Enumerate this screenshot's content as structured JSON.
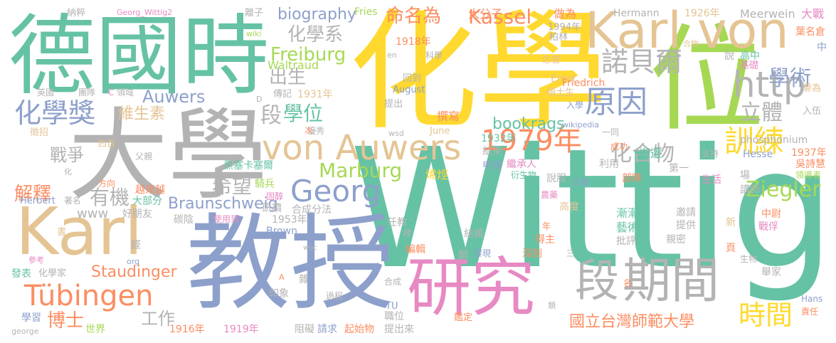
{
  "colors": {
    "green": "#66c2a5",
    "orange": "#fc8d62",
    "blue": "#8da0cb",
    "pink": "#e78ac3",
    "lime": "#a6d854",
    "yellow": "#ffd92f",
    "tan": "#e5c494",
    "gray": "#b3b3b3"
  },
  "words": [
    {
      "text": "Wittig",
      "color": "green"
    },
    {
      "text": "化學",
      "color": "yellow"
    },
    {
      "text": "大學",
      "color": "gray"
    },
    {
      "text": "教授",
      "color": "blue"
    },
    {
      "text": "德國時",
      "color": "green"
    },
    {
      "text": "位",
      "color": "lime"
    },
    {
      "text": "Karl von",
      "color": "tan"
    },
    {
      "text": "Karl",
      "color": "tan"
    },
    {
      "text": "研究",
      "color": "pink"
    },
    {
      "text": "期間",
      "color": "gray"
    },
    {
      "text": "段",
      "color": "gray"
    },
    {
      "text": "von Auwers",
      "color": "tan"
    },
    {
      "text": "Georg",
      "color": "blue"
    },
    {
      "text": "Tübingen",
      "color": "orange"
    },
    {
      "text": "1979年",
      "color": "orange"
    },
    {
      "text": "http",
      "color": "gray"
    },
    {
      "text": "原因",
      "color": "blue"
    },
    {
      "text": "諾貝爾",
      "color": "gray"
    },
    {
      "text": "化學獎",
      "color": "blue"
    },
    {
      "text": "訓練",
      "color": "yellow"
    },
    {
      "text": "時間",
      "color": "yellow"
    },
    {
      "text": "國立台灣師範大學",
      "color": "orange"
    },
    {
      "text": "Kassel",
      "color": "orange"
    },
    {
      "text": "Marburg",
      "color": "lime"
    },
    {
      "text": "Ziegler",
      "color": "lime"
    },
    {
      "text": "Freiburg",
      "color": "lime"
    },
    {
      "text": "Auwers",
      "color": "blue"
    },
    {
      "text": "Staudinger",
      "color": "orange"
    },
    {
      "text": "Braunschweig",
      "color": "blue"
    },
    {
      "text": "bookrags",
      "color": "green"
    },
    {
      "text": "biography",
      "color": "blue"
    },
    {
      "text": "命名為",
      "color": "orange"
    },
    {
      "text": "化學系",
      "color": "gray"
    },
    {
      "text": "出生",
      "color": "gray"
    },
    {
      "text": "學位",
      "color": "green"
    },
    {
      "text": "段",
      "color": "gray"
    },
    {
      "text": "學術",
      "color": "blue"
    },
    {
      "text": "立體",
      "color": "gray"
    },
    {
      "text": "化合物",
      "color": "gray"
    },
    {
      "text": "維生素",
      "color": "tan"
    },
    {
      "text": "戰爭",
      "color": "gray"
    },
    {
      "text": "解釋",
      "color": "orange"
    },
    {
      "text": "希望",
      "color": "gray"
    },
    {
      "text": "有機",
      "color": "gray"
    },
    {
      "text": "博士",
      "color": "orange"
    },
    {
      "text": "工作",
      "color": "gray"
    },
    {
      "text": "www",
      "color": "gray"
    },
    {
      "text": "Waltraud",
      "color": "lime"
    },
    {
      "text": "Meerwein",
      "color": "gray"
    },
    {
      "text": "Hermann",
      "color": "gray"
    },
    {
      "text": "Fries",
      "color": "lime"
    },
    {
      "text": "1918年",
      "color": "orange"
    },
    {
      "text": "1926年",
      "color": "tan"
    },
    {
      "text": "1931年",
      "color": "tan"
    },
    {
      "text": "1932年",
      "color": "green"
    },
    {
      "text": "1937年",
      "color": "orange"
    },
    {
      "text": "1916年",
      "color": "orange"
    },
    {
      "text": "1919年",
      "color": "pink"
    },
    {
      "text": "1953年",
      "color": "gray"
    },
    {
      "text": "1994年",
      "color": "gray"
    },
    {
      "text": "大分子",
      "color": "orange"
    },
    {
      "text": "做為",
      "color": "orange"
    },
    {
      "text": "大戰",
      "color": "pink"
    },
    {
      "text": "葉名倉",
      "color": "orange"
    },
    {
      "text": "柏林",
      "color": "gray"
    },
    {
      "text": "念書",
      "color": "tan"
    },
    {
      "text": "合物",
      "color": "tan"
    },
    {
      "text": "高中",
      "color": "green"
    },
    {
      "text": "基礎",
      "color": "pink"
    },
    {
      "text": "說",
      "color": "gray"
    },
    {
      "text": "中",
      "color": "blue"
    },
    {
      "text": "Ernst",
      "color": "tan"
    },
    {
      "text": "Friedrich",
      "color": "orange"
    },
    {
      "text": "碩士生",
      "color": "tan"
    },
    {
      "text": "入學",
      "color": "blue"
    },
    {
      "text": "譽為",
      "color": "tan"
    },
    {
      "text": "入伍",
      "color": "gray"
    },
    {
      "text": "phosphonium",
      "color": "gray"
    },
    {
      "text": "wikipedia",
      "color": "blue"
    },
    {
      "text": "Hesse",
      "color": "blue"
    },
    {
      "text": "吳詩慧",
      "color": "orange"
    },
    {
      "text": "領導者",
      "color": "lime"
    },
    {
      "text": "撰寫",
      "color": "orange"
    },
    {
      "text": "結束",
      "color": "gray"
    },
    {
      "text": "成功",
      "color": "orange"
    },
    {
      "text": "搬遷",
      "color": "green"
    },
    {
      "text": "支持",
      "color": "gray"
    },
    {
      "text": "一同",
      "color": "gray"
    },
    {
      "text": "繼承人",
      "color": "pink"
    },
    {
      "text": "衍生物",
      "color": "green"
    },
    {
      "text": "申請",
      "color": "blue"
    },
    {
      "text": "利用",
      "color": "gray"
    },
    {
      "text": "第一",
      "color": "gray"
    },
    {
      "text": "生活",
      "color": "pink"
    },
    {
      "text": "部隊",
      "color": "orange"
    },
    {
      "text": "說服",
      "color": "gray"
    },
    {
      "text": "文獻",
      "color": "blue"
    },
    {
      "text": "場",
      "color": "gray"
    },
    {
      "text": "講師",
      "color": "gray"
    },
    {
      "text": "烯烴",
      "color": "yellow"
    },
    {
      "text": "高度",
      "color": "tan"
    },
    {
      "text": "農藥",
      "color": "pink"
    },
    {
      "text": "漸漸",
      "color": "green"
    },
    {
      "text": "邀請",
      "color": "gray"
    },
    {
      "text": "新",
      "color": "tan"
    },
    {
      "text": "藝術",
      "color": "green"
    },
    {
      "text": "提供",
      "color": "gray"
    },
    {
      "text": "中尉",
      "color": "orange"
    },
    {
      "text": "戰俘",
      "color": "pink"
    },
    {
      "text": "親密",
      "color": "gray"
    },
    {
      "text": "批評",
      "color": "gray"
    },
    {
      "text": "得主",
      "color": "orange"
    },
    {
      "text": "深刻",
      "color": "orange"
    },
    {
      "text": "頁",
      "color": "orange"
    },
    {
      "text": "生物",
      "color": "gray"
    },
    {
      "text": "舉家",
      "color": "gray"
    },
    {
      "text": "三",
      "color": "gray"
    },
    {
      "text": "年",
      "color": "orange"
    },
    {
      "text": "結婚",
      "color": "gray"
    },
    {
      "text": "任教",
      "color": "gray"
    },
    {
      "text": "裡",
      "color": "gray"
    },
    {
      "text": "編輯",
      "color": "orange"
    },
    {
      "text": "酮",
      "color": "gray"
    },
    {
      "text": "發現",
      "color": "blue"
    },
    {
      "text": "類",
      "color": "gray"
    },
    {
      "text": "名",
      "color": "orange"
    },
    {
      "text": "Hans",
      "color": "blue"
    },
    {
      "text": "責任",
      "color": "orange"
    },
    {
      "text": "鑑定",
      "color": "orange"
    },
    {
      "text": "TU",
      "color": "blue"
    },
    {
      "text": "職位",
      "color": "gray"
    },
    {
      "text": "合成",
      "color": "gray"
    },
    {
      "text": "過程",
      "color": "gray"
    },
    {
      "text": "起始物",
      "color": "orange"
    },
    {
      "text": "提出來",
      "color": "gray"
    },
    {
      "text": "阻礙",
      "color": "gray"
    },
    {
      "text": "請求",
      "color": "blue"
    },
    {
      "text": "Brown",
      "color": "blue"
    },
    {
      "text": "印象",
      "color": "gray"
    },
    {
      "text": "雜",
      "color": "gray"
    },
    {
      "text": "研讀",
      "color": "gray"
    },
    {
      "text": "合成分法",
      "color": "gray"
    },
    {
      "text": "騎兵",
      "color": "lime"
    },
    {
      "text": "黑塞卡塞爾",
      "color": "green"
    },
    {
      "text": "固醇",
      "color": "pink"
    },
    {
      "text": "碳陰",
      "color": "gray"
    },
    {
      "text": "使用到",
      "color": "pink"
    },
    {
      "text": "越來越",
      "color": "orange"
    },
    {
      "text": "大部分",
      "color": "green"
    },
    {
      "text": "好朋友",
      "color": "gray"
    },
    {
      "text": "著名",
      "color": "gray"
    },
    {
      "text": "Herbert",
      "color": "blue"
    },
    {
      "text": "方向",
      "color": "orange"
    },
    {
      "text": "父親",
      "color": "gray"
    },
    {
      "text": "化",
      "color": "gray"
    },
    {
      "text": "四百",
      "color": "tan"
    },
    {
      "text": "徵招",
      "color": "tan"
    },
    {
      "text": "優秀",
      "color": "gray"
    },
    {
      "text": "次",
      "color": "orange"
    },
    {
      "text": "June",
      "color": "tan"
    },
    {
      "text": "wsd",
      "color": "gray"
    },
    {
      "text": "提出",
      "color": "gray"
    },
    {
      "text": "August",
      "color": "blue"
    },
    {
      "text": "傳記",
      "color": "gray"
    },
    {
      "text": "回到",
      "color": "gray"
    },
    {
      "text": "科學",
      "color": "gray"
    },
    {
      "text": "en",
      "color": "gray"
    },
    {
      "text": "英國",
      "color": "gray"
    },
    {
      "text": "團隊",
      "color": "gray"
    },
    {
      "text": "領域",
      "color": "gray"
    },
    {
      "text": "C",
      "color": "pink"
    },
    {
      "text": "D",
      "color": "gray"
    },
    {
      "text": "wiki",
      "color": "lime"
    },
    {
      "text": "Georg_Wittig2",
      "color": "pink"
    },
    {
      "text": "納粹",
      "color": "gray"
    },
    {
      "text": "離子",
      "color": "gray"
    },
    {
      "text": "書",
      "color": "tan"
    },
    {
      "text": "醛",
      "color": "gray"
    },
    {
      "text": "org",
      "color": "blue"
    },
    {
      "text": "參考",
      "color": "pink"
    },
    {
      "text": "發表",
      "color": "green"
    },
    {
      "text": "化學家",
      "color": "gray"
    },
    {
      "text": "學習",
      "color": "blue"
    },
    {
      "text": "世界",
      "color": "lime"
    },
    {
      "text": "george",
      "color": "gray"
    },
    {
      "text": "woc",
      "color": "gray"
    },
    {
      "text": "A",
      "color": "orange"
    }
  ]
}
